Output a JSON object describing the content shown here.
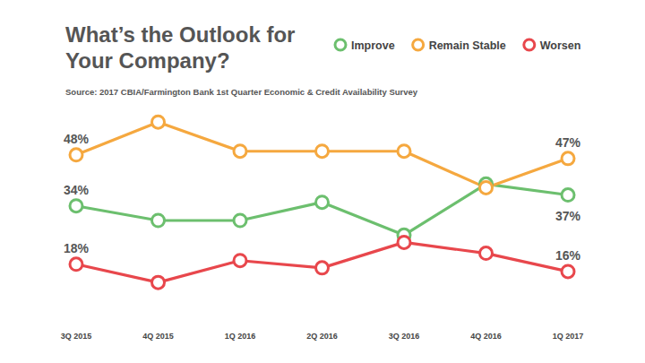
{
  "chart_data": {
    "type": "line",
    "title": "What’s the Outlook for Your Company?",
    "subtitle": "Source: 2017 CBIA/Farmington Bank 1st Quarter Economic & Credit Availability Survey",
    "categories": [
      "3Q 2015",
      "4Q 2015",
      "1Q 2016",
      "2Q 2016",
      "3Q 2016",
      "4Q 2016",
      "1Q 2017"
    ],
    "ylim": [
      0,
      60
    ],
    "tick_labels": "x",
    "grid": false,
    "legend": "top right",
    "data_labels": true,
    "marker": "circle",
    "series": [
      {
        "name": "Improve",
        "color": "#6cbf6e",
        "values": [
          34,
          30,
          30,
          35,
          26,
          40,
          37
        ],
        "value_labels": [
          "34%",
          null,
          null,
          null,
          null,
          null,
          "37%"
        ]
      },
      {
        "name": "Remain Stable",
        "color": "#f5a83f",
        "values": [
          48,
          57,
          49,
          49,
          49,
          39,
          47
        ],
        "value_labels": [
          "48%",
          null,
          null,
          null,
          null,
          null,
          "47%"
        ]
      },
      {
        "name": "Worsen",
        "color": "#e8474c",
        "values": [
          18,
          13,
          19,
          17,
          24,
          21,
          16
        ],
        "value_labels": [
          "18%",
          null,
          null,
          null,
          null,
          null,
          "16%"
        ]
      }
    ]
  }
}
